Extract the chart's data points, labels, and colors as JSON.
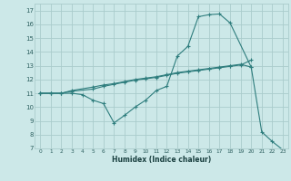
{
  "xlabel": "Humidex (Indice chaleur)",
  "bg_color": "#cce8e8",
  "grid_color": "#aacccc",
  "line_color": "#2e7d7d",
  "xlim": [
    -0.5,
    23.5
  ],
  "ylim": [
    7,
    17.5
  ],
  "xticks": [
    0,
    1,
    2,
    3,
    4,
    5,
    6,
    7,
    8,
    9,
    10,
    11,
    12,
    13,
    14,
    15,
    16,
    17,
    18,
    19,
    20,
    21,
    22,
    23
  ],
  "yticks": [
    7,
    8,
    9,
    10,
    11,
    12,
    13,
    14,
    15,
    16,
    17
  ],
  "line1_x": [
    0,
    1,
    2,
    3,
    5,
    6,
    7,
    8,
    9,
    10,
    11,
    12,
    13,
    14,
    15,
    16,
    17,
    18,
    19,
    20
  ],
  "line1_y": [
    11.0,
    11.0,
    11.0,
    11.15,
    11.3,
    11.5,
    11.65,
    11.8,
    11.95,
    12.05,
    12.15,
    12.3,
    12.45,
    12.55,
    12.65,
    12.75,
    12.85,
    12.95,
    13.05,
    13.4
  ],
  "line2_x": [
    0,
    1,
    2,
    3,
    5,
    6,
    7,
    8,
    9,
    10,
    11,
    12,
    13,
    14,
    15,
    16,
    17,
    18,
    19,
    20
  ],
  "line2_y": [
    11.0,
    11.0,
    11.0,
    11.2,
    11.45,
    11.6,
    11.7,
    11.85,
    12.0,
    12.1,
    12.2,
    12.35,
    12.5,
    12.6,
    12.7,
    12.8,
    12.9,
    13.0,
    13.1,
    12.9
  ],
  "line3_x": [
    0,
    1,
    2,
    3,
    4,
    5,
    6,
    7,
    8,
    9,
    10,
    11,
    12,
    13,
    14,
    15,
    16,
    17,
    18,
    20,
    21,
    22,
    23
  ],
  "line3_y": [
    11.0,
    11.0,
    11.0,
    11.0,
    10.9,
    10.5,
    10.25,
    8.85,
    9.4,
    10.0,
    10.5,
    11.2,
    11.5,
    13.7,
    14.4,
    16.55,
    16.7,
    16.75,
    16.1,
    12.9,
    8.2,
    7.5,
    6.9
  ]
}
